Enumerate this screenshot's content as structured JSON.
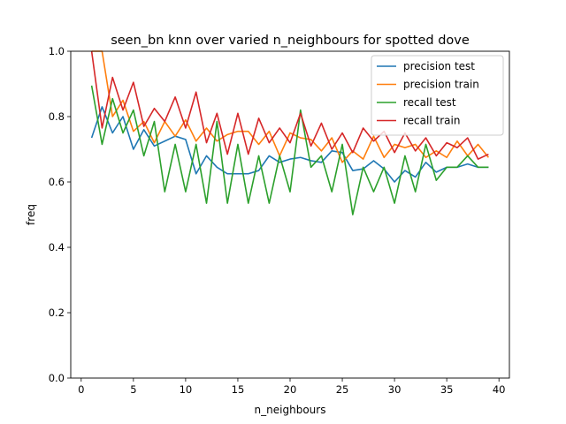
{
  "chart_data": {
    "type": "line",
    "title": "seen_bn knn over varied n_neighbours for spotted dove",
    "xlabel": "n_neighbours",
    "ylabel": "freq",
    "xlim": [
      -1,
      41
    ],
    "ylim": [
      0,
      1.0
    ],
    "xticks": [
      0,
      5,
      10,
      15,
      20,
      25,
      30,
      35,
      40
    ],
    "yticks": [
      0.0,
      0.2,
      0.4,
      0.6,
      0.8,
      1.0
    ],
    "xtick_labels": [
      "0",
      "5",
      "10",
      "15",
      "20",
      "25",
      "30",
      "35",
      "40"
    ],
    "ytick_labels": [
      "0.0",
      "0.2",
      "0.4",
      "0.6",
      "0.8",
      "1.0"
    ],
    "grid": false,
    "legend_position": "top-right",
    "x": [
      1,
      2,
      3,
      4,
      5,
      6,
      7,
      8,
      9,
      10,
      11,
      12,
      13,
      14,
      15,
      16,
      17,
      18,
      19,
      20,
      21,
      22,
      23,
      24,
      25,
      26,
      27,
      28,
      29,
      30,
      31,
      32,
      33,
      34,
      35,
      36,
      37,
      38,
      39
    ],
    "series": [
      {
        "name": "precision test",
        "color": "#1f77b4",
        "values": [
          0.735,
          0.83,
          0.75,
          0.8,
          0.7,
          0.76,
          0.71,
          0.725,
          0.74,
          0.73,
          0.625,
          0.68,
          0.645,
          0.625,
          0.625,
          0.625,
          0.635,
          0.68,
          0.66,
          0.67,
          0.675,
          0.665,
          0.66,
          0.695,
          0.69,
          0.635,
          0.64,
          0.665,
          0.64,
          0.6,
          0.635,
          0.615,
          0.66,
          0.63,
          0.645,
          0.645,
          0.655,
          0.645,
          0.645
        ]
      },
      {
        "name": "precision train",
        "color": "#ff7f0e",
        "values": [
          1.0,
          1.0,
          0.8,
          0.85,
          0.755,
          0.785,
          0.72,
          0.785,
          0.74,
          0.79,
          0.725,
          0.765,
          0.725,
          0.745,
          0.755,
          0.755,
          0.715,
          0.755,
          0.68,
          0.75,
          0.735,
          0.73,
          0.695,
          0.735,
          0.66,
          0.695,
          0.67,
          0.74,
          0.675,
          0.715,
          0.705,
          0.715,
          0.675,
          0.695,
          0.675,
          0.725,
          0.68,
          0.715,
          0.675
        ]
      },
      {
        "name": "recall test",
        "color": "#2ca02c",
        "values": [
          0.895,
          0.715,
          0.855,
          0.75,
          0.82,
          0.68,
          0.785,
          0.57,
          0.715,
          0.57,
          0.715,
          0.535,
          0.785,
          0.535,
          0.715,
          0.535,
          0.68,
          0.535,
          0.68,
          0.57,
          0.82,
          0.645,
          0.68,
          0.57,
          0.715,
          0.5,
          0.645,
          0.57,
          0.645,
          0.535,
          0.68,
          0.57,
          0.715,
          0.605,
          0.645,
          0.645,
          0.68,
          0.645,
          0.645
        ]
      },
      {
        "name": "recall train",
        "color": "#d62728",
        "values": [
          1.0,
          0.765,
          0.92,
          0.82,
          0.905,
          0.77,
          0.825,
          0.785,
          0.86,
          0.765,
          0.875,
          0.72,
          0.81,
          0.685,
          0.81,
          0.685,
          0.795,
          0.72,
          0.765,
          0.72,
          0.81,
          0.71,
          0.78,
          0.7,
          0.75,
          0.69,
          0.765,
          0.725,
          0.755,
          0.69,
          0.75,
          0.695,
          0.735,
          0.68,
          0.72,
          0.705,
          0.735,
          0.67,
          0.685
        ]
      }
    ]
  }
}
